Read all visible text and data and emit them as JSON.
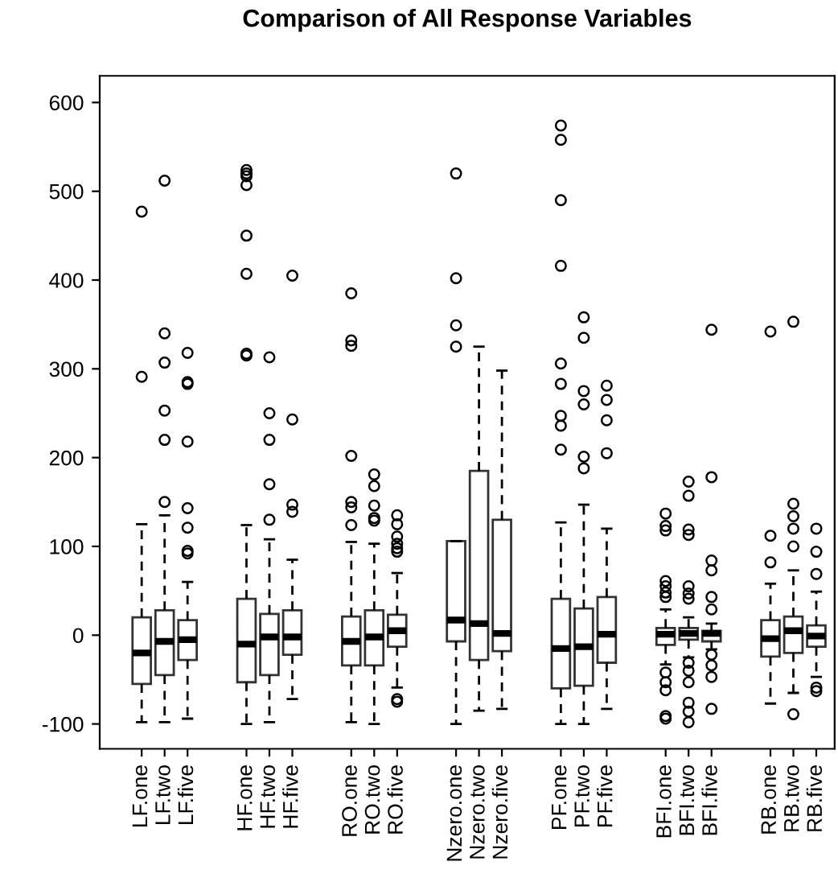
{
  "chart_data": {
    "type": "box",
    "title": "Comparison of All Response Variables",
    "categories": [
      "LF.one",
      "LF.two",
      "LF.five",
      "HF.one",
      "HF.two",
      "HF.five",
      "RO.one",
      "RO.two",
      "RO.five",
      "Nzero.one",
      "Nzero.two",
      "Nzero.five",
      "PF.one",
      "PF.two",
      "PF.five",
      "BFI.one",
      "BFI.two",
      "BFI.five",
      "RB.one",
      "RB.two",
      "RB.five"
    ],
    "ylim": [
      -128,
      630
    ],
    "yticks": [
      -100,
      0,
      100,
      200,
      300,
      400,
      500,
      600
    ],
    "grid": false,
    "legend": false,
    "boxes": [
      {
        "low": -98,
        "q1": -55,
        "median": -20,
        "q3": 20,
        "high": 125,
        "outliers": [
          477,
          291
        ]
      },
      {
        "low": -98,
        "q1": -45,
        "median": -7,
        "q3": 28,
        "high": 135,
        "outliers": [
          512,
          340,
          307,
          253,
          220,
          150
        ]
      },
      {
        "low": -94,
        "q1": -28,
        "median": -5,
        "q3": 17,
        "high": 60,
        "outliers": [
          318,
          285,
          283,
          218,
          143,
          121,
          95,
          92
        ]
      },
      {
        "low": -100,
        "q1": -53,
        "median": -10,
        "q3": 41,
        "high": 124,
        "outliers": [
          524,
          520,
          517,
          507,
          450,
          407,
          317,
          315
        ]
      },
      {
        "low": -98,
        "q1": -45,
        "median": -2,
        "q3": 24,
        "high": 108,
        "outliers": [
          313,
          250,
          220,
          170,
          130
        ]
      },
      {
        "low": -72,
        "q1": -22,
        "median": -2,
        "q3": 28,
        "high": 85,
        "outliers": [
          405,
          243,
          147,
          139
        ]
      },
      {
        "low": -98,
        "q1": -34,
        "median": -7,
        "q3": 21,
        "high": 105,
        "outliers": [
          385,
          332,
          326,
          202,
          150,
          144,
          124
        ]
      },
      {
        "low": -100,
        "q1": -34,
        "median": -2,
        "q3": 28,
        "high": 103,
        "outliers": [
          181,
          168,
          146,
          132,
          129
        ]
      },
      {
        "low": -59,
        "q1": -13,
        "median": 5,
        "q3": 23,
        "high": 70,
        "outliers": [
          135,
          125,
          111,
          103,
          98,
          94,
          -72,
          -75
        ]
      },
      {
        "low": -100,
        "q1": -7,
        "median": 17,
        "q3": 106,
        "high": 106,
        "outliers": [
          520,
          402,
          349,
          325
        ]
      },
      {
        "low": -85,
        "q1": -28,
        "median": 13,
        "q3": 185,
        "high": 325
      },
      {
        "low": -83,
        "q1": -18,
        "median": 2,
        "q3": 130,
        "high": 298
      },
      {
        "low": -100,
        "q1": -60,
        "median": -15,
        "q3": 41,
        "high": 127,
        "outliers": [
          574,
          558,
          490,
          416,
          306,
          283,
          247,
          236,
          209
        ]
      },
      {
        "low": -100,
        "q1": -57,
        "median": -13,
        "q3": 30,
        "high": 147,
        "outliers": [
          358,
          335,
          275,
          260,
          201,
          188
        ]
      },
      {
        "low": -83,
        "q1": -31,
        "median": 1,
        "q3": 43,
        "high": 120,
        "outliers": [
          281,
          265,
          242,
          205
        ]
      },
      {
        "low": -33,
        "q1": -11,
        "median": 1,
        "q3": 8,
        "high": 29,
        "outliers": [
          137,
          123,
          118,
          61,
          55,
          48,
          43,
          -42,
          -53,
          -62,
          -91,
          -94
        ]
      },
      {
        "low": -25,
        "q1": -5,
        "median": 2,
        "q3": 8,
        "high": 20,
        "outliers": [
          173,
          157,
          119,
          113,
          55,
          47,
          41,
          -31,
          -40,
          -53,
          -76,
          -86,
          -98
        ]
      },
      {
        "low": -16,
        "q1": -7,
        "median": 2,
        "q3": 5,
        "high": 13,
        "outliers": [
          344,
          178,
          84,
          73,
          43,
          29,
          -22,
          -34,
          -47,
          -83
        ]
      },
      {
        "low": -77,
        "q1": -24,
        "median": -4,
        "q3": 17,
        "high": 58,
        "outliers": [
          342,
          112,
          82
        ]
      },
      {
        "low": -65,
        "q1": -20,
        "median": 5,
        "q3": 21,
        "high": 73,
        "outliers": [
          353,
          148,
          134,
          120,
          100,
          -89
        ]
      },
      {
        "low": -47,
        "q1": -13,
        "median": -1,
        "q3": 11,
        "high": 49,
        "outliers": [
          120,
          94,
          69,
          -59,
          -63
        ]
      }
    ]
  }
}
